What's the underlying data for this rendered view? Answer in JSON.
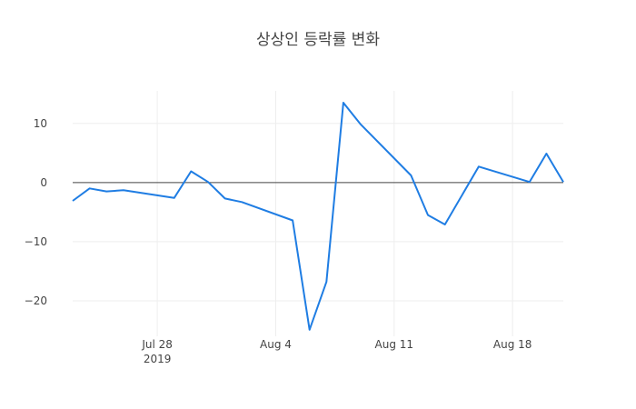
{
  "chart_data": {
    "type": "line",
    "title": "상상인 등락률 변화",
    "xlabel": "",
    "ylabel": "",
    "x": [
      "2019-07-23",
      "2019-07-24",
      "2019-07-25",
      "2019-07-26",
      "2019-07-29",
      "2019-07-30",
      "2019-07-31",
      "2019-08-01",
      "2019-08-02",
      "2019-08-05",
      "2019-08-06",
      "2019-08-07",
      "2019-08-08",
      "2019-08-09",
      "2019-08-12",
      "2019-08-13",
      "2019-08-14",
      "2019-08-16",
      "2019-08-19",
      "2019-08-20",
      "2019-08-21"
    ],
    "series": [
      {
        "name": "",
        "color": "#1f7de3",
        "values": [
          -3.1,
          -1.0,
          -1.5,
          -1.3,
          -2.6,
          1.9,
          0.1,
          -2.7,
          -3.3,
          -6.4,
          -24.9,
          -16.8,
          13.5,
          9.9,
          1.2,
          -5.5,
          -7.1,
          2.7,
          0.1,
          4.9,
          0.1
        ]
      }
    ],
    "xticks": [
      {
        "date": "2019-07-28",
        "label": "Jul 28",
        "sublabel": "2019"
      },
      {
        "date": "2019-08-04",
        "label": "Aug 4",
        "sublabel": ""
      },
      {
        "date": "2019-08-11",
        "label": "Aug 11",
        "sublabel": ""
      },
      {
        "date": "2019-08-18",
        "label": "Aug 18",
        "sublabel": ""
      }
    ],
    "yticks": [
      {
        "value": 10,
        "label": "10"
      },
      {
        "value": 0,
        "label": "0"
      },
      {
        "value": -10,
        "label": "−10"
      },
      {
        "value": -20,
        "label": "−20"
      }
    ],
    "xlim": [
      "2019-07-23",
      "2019-08-21"
    ],
    "ylim": [
      -26.0,
      15.5
    ],
    "grid": true,
    "zero_line": true,
    "legend": "none"
  }
}
